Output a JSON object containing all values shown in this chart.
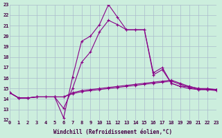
{
  "xlabel": "Windchill (Refroidissement éolien,°C)",
  "xlim": [
    0,
    23
  ],
  "ylim": [
    12,
    23
  ],
  "yticks": [
    12,
    13,
    14,
    15,
    16,
    17,
    18,
    19,
    20,
    21,
    22,
    23
  ],
  "xticks": [
    0,
    1,
    2,
    3,
    4,
    5,
    6,
    7,
    8,
    9,
    10,
    11,
    12,
    13,
    14,
    15,
    16,
    17,
    18,
    19,
    20,
    21,
    22,
    23
  ],
  "background_color": "#cceedd",
  "grid_color": "#aabbcc",
  "line_color": "#880088",
  "series": [
    {
      "x": [
        0,
        1,
        2,
        3,
        5,
        6,
        7,
        8,
        9,
        10,
        11,
        12,
        13,
        14,
        15,
        16,
        17,
        18,
        19,
        20,
        21,
        22,
        23
      ],
      "y": [
        14.6,
        14.1,
        14.1,
        14.2,
        14.2,
        12.2,
        16.1,
        19.5,
        20.0,
        21.1,
        23.0,
        21.8,
        20.6,
        20.6,
        20.6,
        16.3,
        16.8,
        15.5,
        15.2,
        15.0,
        14.9,
        14.9,
        14.9
      ]
    },
    {
      "x": [
        0,
        1,
        2,
        3,
        5,
        6,
        7,
        8,
        9,
        10,
        11,
        12,
        13,
        14,
        15,
        16,
        17,
        18,
        19,
        20,
        21,
        22,
        23
      ],
      "y": [
        14.6,
        14.1,
        14.1,
        14.2,
        14.2,
        13.1,
        15.0,
        17.5,
        18.5,
        20.4,
        21.5,
        21.1,
        20.6,
        20.6,
        20.6,
        16.5,
        17.0,
        15.5,
        15.2,
        15.2,
        15.0,
        15.0,
        14.9
      ]
    },
    {
      "x": [
        0,
        1,
        2,
        3,
        4,
        5,
        6,
        7,
        8,
        9,
        10,
        11,
        12,
        13,
        14,
        15,
        16,
        17,
        18,
        19,
        20,
        21,
        22,
        23
      ],
      "y": [
        14.6,
        14.1,
        14.1,
        14.2,
        14.2,
        14.2,
        14.2,
        14.6,
        14.8,
        14.9,
        15.0,
        15.1,
        15.2,
        15.3,
        15.4,
        15.5,
        15.6,
        15.7,
        15.8,
        15.5,
        15.2,
        15.0,
        14.9,
        14.9
      ]
    },
    {
      "x": [
        0,
        1,
        2,
        3,
        4,
        5,
        6,
        7,
        8,
        9,
        10,
        11,
        12,
        13,
        14,
        15,
        16,
        17,
        18,
        19,
        20,
        21,
        22,
        23
      ],
      "y": [
        14.6,
        14.1,
        14.1,
        14.2,
        14.2,
        14.2,
        14.2,
        14.5,
        14.7,
        14.8,
        14.9,
        15.0,
        15.1,
        15.2,
        15.3,
        15.4,
        15.5,
        15.6,
        15.7,
        15.4,
        15.1,
        14.9,
        14.9,
        14.8
      ]
    }
  ]
}
